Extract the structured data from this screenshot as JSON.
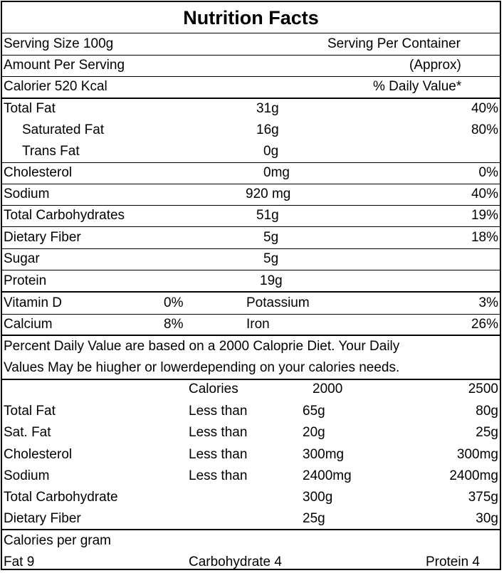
{
  "title": "Nutrition Facts",
  "serving": {
    "size": "Serving Size 100g",
    "per_container": "Serving Per  Container",
    "amount_per_serving": "Amount Per Serving",
    "approx": "(Approx)",
    "calories": "Calorier 520 Kcal",
    "daily_value_header": "% Daily Value*"
  },
  "nutrients": [
    {
      "name": "Total Fat",
      "amount": "31g",
      "dv": "40%"
    },
    {
      "name": "Saturated Fat",
      "amount": "16g",
      "dv": "80%"
    },
    {
      "name": "Trans Fat",
      "amount": "0g",
      "dv": ""
    },
    {
      "name": "Cholesterol",
      "amount": "0mg",
      "dv": "0%"
    },
    {
      "name": "Sodium",
      "amount": "920 mg",
      "dv": "40%"
    },
    {
      "name": "Total Carbohydrates",
      "amount": "51g",
      "dv": "19%"
    },
    {
      "name": "Dietary Fiber",
      "amount": "5g",
      "dv": "18%"
    },
    {
      "name": "Sugar",
      "amount": "5g",
      "dv": ""
    },
    {
      "name": "Protein",
      "amount": "19g",
      "dv": ""
    }
  ],
  "vitamins": [
    {
      "name1": "Vitamin D",
      "value1": "0%",
      "name2": "Potassium",
      "value2": "3%"
    },
    {
      "name1": "Calcium",
      "value1": "8%",
      "name2": "Iron",
      "value2": "26%"
    }
  ],
  "footnote": {
    "line1": "Percent  Daily  Value are based on a  2000 Caloprie Diet. Your Daily",
    "line2": "Values May be hiugher or lowerdepending on your calories needs."
  },
  "reference": {
    "header": {
      "label": "Calories",
      "col1": "2000",
      "col2": "2500"
    },
    "rows": [
      {
        "name": "Total Fat",
        "limit": "Less than",
        "col1": "65g",
        "col2": "80g"
      },
      {
        "name": "Sat. Fat",
        "limit": "Less than",
        "col1": "20g",
        "col2": "25g"
      },
      {
        "name": "Cholesterol",
        "limit": "Less than",
        "col1": "300mg",
        "col2": "300mg"
      },
      {
        "name": "Sodium",
        "limit": "Less than",
        "col1": "2400mg",
        "col2": "2400mg"
      },
      {
        "name": "Total Carbohydrate",
        "limit": "",
        "col1": "300g",
        "col2": "375g"
      },
      {
        "name": "Dietary Fiber",
        "limit": "",
        "col1": "25g",
        "col2": "30g"
      }
    ]
  },
  "calories_per_gram": {
    "label": "Calories per gram",
    "fat": "Fat 9",
    "carbohydrate": "Carbohydrate 4",
    "protein": "Protein 4"
  }
}
